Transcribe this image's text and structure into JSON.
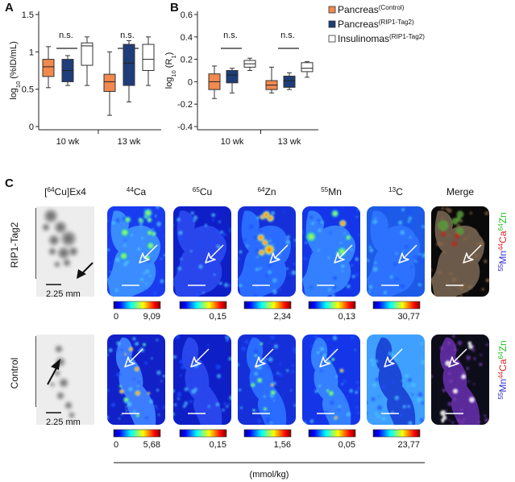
{
  "panel_labels": {
    "a": "A",
    "b": "B",
    "c": "C"
  },
  "chart_data": [
    {
      "type": "boxplot",
      "panel": "A",
      "ylabel_prefix": "log",
      "ylabel_sub": "10",
      "ylabel_suffix": " (%ID/mL)",
      "ylim": [
        0,
        1.5
      ],
      "yticks": [
        "0",
        "0.5",
        "1",
        "1.5"
      ],
      "groups": [
        "10 wk",
        "13 wk"
      ],
      "significance": [
        "n.s.",
        "n.s."
      ],
      "series": [
        {
          "name": "Pancreas (Control)",
          "color": "#f2894f",
          "boxes": [
            {
              "min": 0.52,
              "q1": 0.67,
              "median": 0.8,
              "q3": 0.9,
              "max": 1.07
            },
            {
              "min": 0.15,
              "q1": 0.47,
              "median": 0.6,
              "q3": 0.7,
              "max": 1.0
            }
          ]
        },
        {
          "name": "Pancreas (RIP1-Tag2)",
          "color": "#1f3d7a",
          "boxes": [
            {
              "min": 0.55,
              "q1": 0.6,
              "median": 0.75,
              "q3": 0.9,
              "max": 0.95
            },
            {
              "min": 0.33,
              "q1": 0.55,
              "median": 0.85,
              "q3": 1.1,
              "max": 1.15
            }
          ]
        },
        {
          "name": "Insulinomas (RIP1-Tag2)",
          "color": "#ffffff",
          "boxes": [
            {
              "min": 0.55,
              "q1": 0.82,
              "median": 1.08,
              "q3": 1.12,
              "max": 1.2
            },
            {
              "min": 0.55,
              "q1": 0.75,
              "median": 0.9,
              "q3": 1.1,
              "max": 1.2
            }
          ]
        }
      ]
    },
    {
      "type": "boxplot",
      "panel": "B",
      "ylabel_prefix": "log",
      "ylabel_sub": "10",
      "ylabel_suffix": " (R",
      "ylabel_sub2": "1",
      "ylabel_end": ")",
      "ylim": [
        -0.4,
        0.6
      ],
      "yticks": [
        "-0.4",
        "-0.2",
        "0",
        "0.2",
        "0.4",
        "0.6"
      ],
      "groups": [
        "10 wk",
        "13 wk"
      ],
      "significance": [
        "n.s.",
        "n.s."
      ],
      "series": [
        {
          "name": "Pancreas (Control)",
          "color": "#f2894f",
          "boxes": [
            {
              "min": -0.15,
              "q1": -0.07,
              "median": 0.0,
              "q3": 0.07,
              "max": 0.14
            },
            {
              "min": -0.1,
              "q1": -0.07,
              "median": -0.03,
              "q3": 0.01,
              "max": 0.13
            }
          ]
        },
        {
          "name": "Pancreas (RIP1-Tag2)",
          "color": "#1f3d7a",
          "boxes": [
            {
              "min": -0.1,
              "q1": -0.01,
              "median": 0.06,
              "q3": 0.1,
              "max": 0.12
            },
            {
              "min": -0.07,
              "q1": -0.05,
              "median": 0.01,
              "q3": 0.05,
              "max": 0.08
            }
          ]
        },
        {
          "name": "Insulinomas (RIP1-Tag2)",
          "color": "#ffffff",
          "boxes": [
            {
              "min": 0.1,
              "q1": 0.13,
              "median": 0.16,
              "q3": 0.19,
              "max": 0.21
            },
            {
              "min": 0.04,
              "q1": 0.09,
              "median": 0.12,
              "q3": 0.17,
              "max": 0.18
            }
          ]
        }
      ]
    }
  ],
  "legend": [
    {
      "main": "Pancreas",
      "sup": "(Control)",
      "color": "#f2894f"
    },
    {
      "main": "Pancreas",
      "sup": "(RIP1-Tag2)",
      "color": "#1f3d7a"
    },
    {
      "main": "Insulinomas",
      "sup": "(RIP1-Tag2)",
      "color": "#ffffff"
    }
  ],
  "panel_c": {
    "columns": [
      {
        "sup": "64",
        "name": "Cu]Ex4",
        "prefix": "["
      },
      {
        "sup": "44",
        "name": "Ca"
      },
      {
        "sup": "65",
        "name": "Cu"
      },
      {
        "sup": "64",
        "name": "Zn"
      },
      {
        "sup": "55",
        "name": "Mn"
      },
      {
        "sup": "13",
        "name": "C"
      },
      {
        "sup": "",
        "name": "Merge"
      }
    ],
    "rows": [
      {
        "label": "RIP1-Tag2",
        "scale_label": "2.25 mm",
        "colorbar_min": [
          "0",
          "",
          "",
          "",
          ""
        ],
        "colorbar_max": [
          "9,09",
          "0,15",
          "2,34",
          "0,13",
          "30,77"
        ]
      },
      {
        "label": "Control",
        "scale_label": "2.25 mm",
        "colorbar_min": [
          "0",
          "",
          "",
          "",
          ""
        ],
        "colorbar_max": [
          "5,68",
          "0,15",
          "1,56",
          "0,05",
          "23,77"
        ]
      }
    ],
    "merge_channels": [
      {
        "sup": "55",
        "name": "Mn",
        "color": "#2a2ad0"
      },
      {
        "sup": "44",
        "name": "Ca",
        "color": "#e02020"
      },
      {
        "sup": "64",
        "name": "Zn",
        "color": "#20c020"
      }
    ],
    "unit": "(mmol/kg)"
  }
}
